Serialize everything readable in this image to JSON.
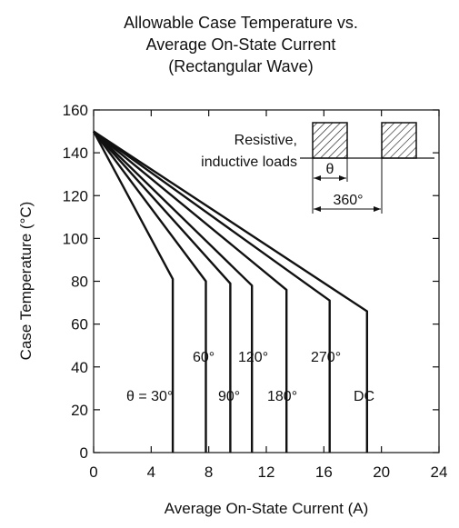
{
  "chart_data": {
    "type": "line",
    "title_lines": [
      "Allowable Case Temperature vs.",
      "Average On-State Current",
      "(Rectangular Wave)"
    ],
    "xlabel": "Average On-State Current  (A)",
    "ylabel": "Case Temperature  (°C)",
    "xlim": [
      0,
      24
    ],
    "ylim": [
      0,
      160
    ],
    "xticks": [
      0,
      4,
      8,
      12,
      16,
      20,
      24
    ],
    "yticks": [
      0,
      20,
      40,
      60,
      80,
      100,
      120,
      140,
      160
    ],
    "grid": false,
    "series": [
      {
        "name": "θ = 30°",
        "points": [
          [
            0,
            150
          ],
          [
            5.5,
            81
          ],
          [
            5.5,
            0
          ]
        ]
      },
      {
        "name": "60°",
        "points": [
          [
            0,
            150
          ],
          [
            7.8,
            80
          ],
          [
            7.8,
            0
          ]
        ]
      },
      {
        "name": "90°",
        "points": [
          [
            0,
            150
          ],
          [
            9.5,
            79
          ],
          [
            9.5,
            0
          ]
        ]
      },
      {
        "name": "120°",
        "points": [
          [
            0,
            150
          ],
          [
            11.0,
            78
          ],
          [
            11.0,
            0
          ]
        ]
      },
      {
        "name": "180°",
        "points": [
          [
            0,
            150
          ],
          [
            13.4,
            76
          ],
          [
            13.4,
            0
          ]
        ]
      },
      {
        "name": "270°",
        "points": [
          [
            0,
            150
          ],
          [
            16.4,
            71
          ],
          [
            16.4,
            0
          ]
        ]
      },
      {
        "name": "DC",
        "points": [
          [
            0,
            150
          ],
          [
            19.0,
            66
          ],
          [
            19.0,
            0
          ]
        ]
      }
    ],
    "inset": {
      "load_label_line1": "Resistive,",
      "load_label_line2": "inductive loads",
      "theta_label": "θ",
      "period_label": "360°"
    }
  }
}
